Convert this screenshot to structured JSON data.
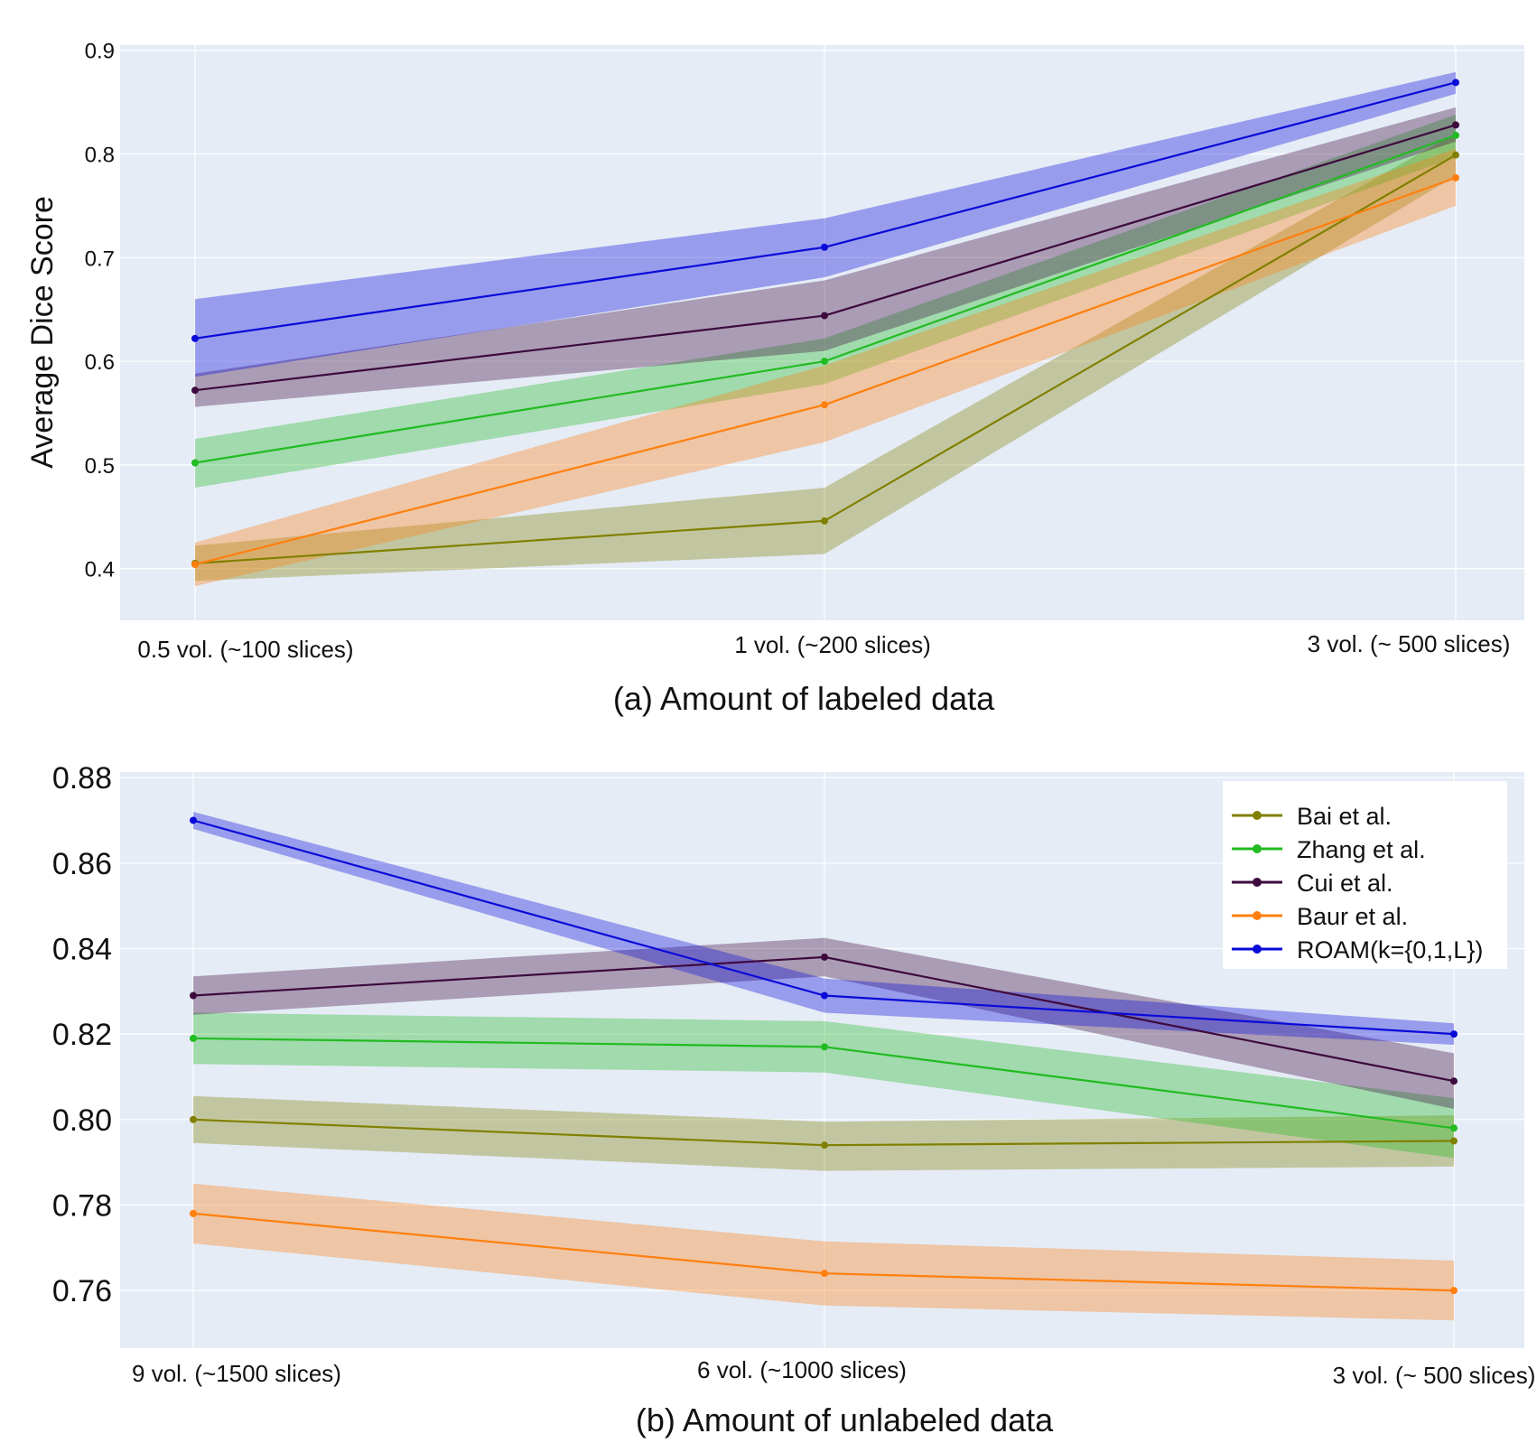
{
  "chart_data": [
    {
      "type": "line",
      "id": "a",
      "caption": "(a) Amount of labeled data",
      "ylabel": "Average Dice Score",
      "xlabel": "",
      "categories": [
        "0.5 vol. (~100 slices)",
        "1 vol. (~200 slices)",
        "3 vol. (~ 500 slices)"
      ],
      "ylim": [
        0.35,
        0.905
      ],
      "yticks": [
        0.4,
        0.5,
        0.6,
        0.7,
        0.8,
        0.9
      ],
      "ytick_labels": [
        "0.4",
        "0.5",
        "0.6",
        "0.7",
        "0.8",
        "0.9"
      ],
      "grid": true,
      "series": [
        {
          "name": "Bai et al.",
          "color": "#808000",
          "values": [
            0.405,
            0.446,
            0.799
          ],
          "lower": [
            0.388,
            0.414,
            0.779
          ],
          "upper": [
            0.422,
            0.478,
            0.82
          ]
        },
        {
          "name": "Zhang et al.",
          "color": "#22bb22",
          "values": [
            0.502,
            0.6,
            0.818
          ],
          "lower": [
            0.478,
            0.578,
            0.797
          ],
          "upper": [
            0.525,
            0.622,
            0.838
          ]
        },
        {
          "name": "Cui et al.",
          "color": "#3d0a3d",
          "values": [
            0.572,
            0.644,
            0.828
          ],
          "lower": [
            0.556,
            0.61,
            0.812
          ],
          "upper": [
            0.588,
            0.678,
            0.845
          ]
        },
        {
          "name": "Baur et al.",
          "color": "#ff7f0e",
          "values": [
            0.404,
            0.558,
            0.777
          ],
          "lower": [
            0.383,
            0.522,
            0.75
          ],
          "upper": [
            0.425,
            0.596,
            0.805
          ]
        },
        {
          "name": "ROAM(k={0,1,L})",
          "color": "#0a0ad9",
          "values": [
            0.622,
            0.71,
            0.869
          ],
          "lower": [
            0.585,
            0.681,
            0.858
          ],
          "upper": [
            0.66,
            0.738,
            0.879
          ]
        }
      ]
    },
    {
      "type": "line",
      "id": "b",
      "caption": "(b) Amount of unlabeled data",
      "ylabel": "",
      "xlabel": "",
      "categories": [
        "9 vol. (~1500 slices)",
        "6 vol. (~1000 slices)",
        "3 vol. (~ 500 slices)"
      ],
      "ylim": [
        0.7465,
        0.8813
      ],
      "yticks": [
        0.76,
        0.78,
        0.8,
        0.82,
        0.84,
        0.86,
        0.88
      ],
      "ytick_labels": [
        "0.76",
        "0.78",
        "0.80",
        "0.82",
        "0.84",
        "0.86",
        "0.88"
      ],
      "grid": true,
      "legend": {
        "position": "top-right",
        "entries": [
          "Bai et al.",
          "Zhang et al.",
          "Cui et al.",
          "Baur et al.",
          "ROAM(k={0,1,L})"
        ]
      },
      "series": [
        {
          "name": "Bai et al.",
          "color": "#808000",
          "values": [
            0.8,
            0.794,
            0.795
          ],
          "lower": [
            0.7945,
            0.788,
            0.789
          ],
          "upper": [
            0.8055,
            0.7995,
            0.801
          ]
        },
        {
          "name": "Zhang et al.",
          "color": "#22bb22",
          "values": [
            0.819,
            0.817,
            0.798
          ],
          "lower": [
            0.813,
            0.811,
            0.791
          ],
          "upper": [
            0.825,
            0.823,
            0.805
          ]
        },
        {
          "name": "Cui et al.",
          "color": "#3d0a3d",
          "values": [
            0.829,
            0.838,
            0.809
          ],
          "lower": [
            0.8245,
            0.8335,
            0.8025
          ],
          "upper": [
            0.8335,
            0.8425,
            0.8155
          ]
        },
        {
          "name": "Baur et al.",
          "color": "#ff7f0e",
          "values": [
            0.778,
            0.764,
            0.76
          ],
          "lower": [
            0.771,
            0.7565,
            0.753
          ],
          "upper": [
            0.785,
            0.7715,
            0.767
          ]
        },
        {
          "name": "ROAM(k={0,1,L})",
          "color": "#0a0ad9",
          "values": [
            0.87,
            0.829,
            0.82
          ],
          "lower": [
            0.868,
            0.825,
            0.8175
          ],
          "upper": [
            0.872,
            0.833,
            0.8225
          ]
        }
      ]
    }
  ]
}
